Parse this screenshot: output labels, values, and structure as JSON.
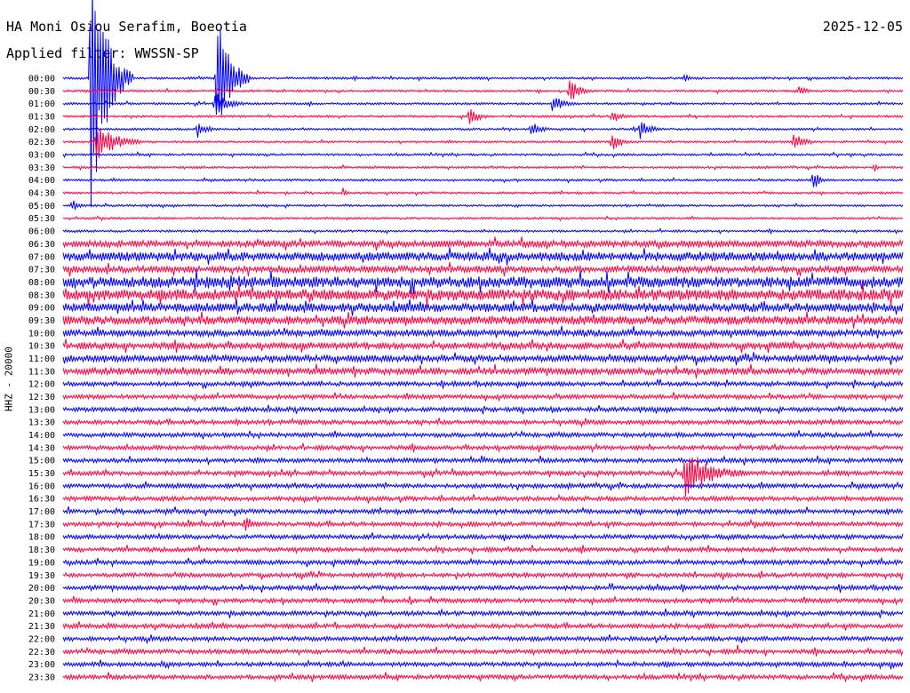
{
  "header": {
    "station": "HA Moni Osiou Serafim, Boeotia",
    "date": "2025-12-05",
    "filter": "Applied filter: WWSSN-SP"
  },
  "chart_data": {
    "type": "line",
    "title": "HA Moni Osiou Serafim, Boeotia",
    "ylabel": "HHZ - 20000",
    "colors": [
      "#0000ff",
      "#ff0040"
    ],
    "rows": [
      "00:00",
      "00:30",
      "01:00",
      "01:30",
      "02:00",
      "02:30",
      "03:00",
      "03:30",
      "04:00",
      "04:30",
      "05:00",
      "05:30",
      "06:00",
      "06:30",
      "07:00",
      "07:30",
      "08:00",
      "08:30",
      "09:00",
      "09:30",
      "10:00",
      "10:30",
      "11:00",
      "11:30",
      "12:00",
      "12:30",
      "13:00",
      "13:30",
      "14:00",
      "14:30",
      "15:00",
      "15:30",
      "16:00",
      "16:30",
      "17:00",
      "17:30",
      "18:00",
      "18:30",
      "19:00",
      "19:30",
      "20:00",
      "20:30",
      "21:00",
      "21:30",
      "22:00",
      "22:30",
      "23:00",
      "23:30"
    ],
    "noise_level": [
      1,
      1,
      1,
      1,
      1,
      1,
      1,
      1,
      1,
      1,
      1,
      1,
      1,
      3,
      4,
      3,
      5,
      5,
      4,
      4,
      3,
      3,
      3,
      3,
      2,
      2,
      2,
      2,
      2,
      2,
      2,
      2,
      2,
      2,
      2,
      2,
      2,
      2,
      2,
      2,
      2,
      2,
      2,
      2,
      2,
      2,
      2,
      2
    ],
    "events": [
      {
        "row": "00:00",
        "minute": 1,
        "amplitude": 160,
        "duration": 1.5
      },
      {
        "row": "00:00",
        "minute": 5.5,
        "amplitude": 85,
        "duration": 1.2
      },
      {
        "row": "02:30",
        "minute": 1.2,
        "amplitude": 22,
        "duration": 2
      },
      {
        "row": "01:00",
        "minute": 5.4,
        "amplitude": 14,
        "duration": 1.5
      },
      {
        "row": "02:00",
        "minute": 4.8,
        "amplitude": 10,
        "duration": 1
      },
      {
        "row": "04:30",
        "minute": 10,
        "amplitude": 6,
        "duration": 0.5
      },
      {
        "row": "00:30",
        "minute": 18.1,
        "amplitude": 16,
        "duration": 1
      },
      {
        "row": "01:00",
        "minute": 17.5,
        "amplitude": 12,
        "duration": 1
      },
      {
        "row": "01:30",
        "minute": 19.6,
        "amplitude": 8,
        "duration": 1
      },
      {
        "row": "02:00",
        "minute": 16.7,
        "amplitude": 10,
        "duration": 1
      },
      {
        "row": "02:00",
        "minute": 20.6,
        "amplitude": 14,
        "duration": 1
      },
      {
        "row": "02:30",
        "minute": 26.1,
        "amplitude": 12,
        "duration": 1
      },
      {
        "row": "00:00",
        "minute": 22.2,
        "amplitude": 6,
        "duration": 0.5
      },
      {
        "row": "01:30",
        "minute": 14.5,
        "amplitude": 12,
        "duration": 1
      },
      {
        "row": "02:30",
        "minute": 19.6,
        "amplitude": 10,
        "duration": 1
      },
      {
        "row": "00:30",
        "minute": 26.3,
        "amplitude": 6,
        "duration": 0.8
      },
      {
        "row": "04:00",
        "minute": 26.8,
        "amplitude": 12,
        "duration": 0.7
      },
      {
        "row": "03:30",
        "minute": 29,
        "amplitude": 8,
        "duration": 0.2
      },
      {
        "row": "15:30",
        "minute": 22.2,
        "amplitude": 32,
        "duration": 2.5
      },
      {
        "row": "17:30",
        "minute": 6.5,
        "amplitude": 10,
        "duration": 1
      },
      {
        "row": "05:00",
        "minute": 0.3,
        "amplitude": 8,
        "duration": 0.8
      },
      {
        "row": "13:30",
        "minute": 6.2,
        "amplitude": 4,
        "duration": 0.6
      },
      {
        "row": "20:00",
        "minute": 22.1,
        "amplitude": 6,
        "duration": 0.6
      },
      {
        "row": "17:00",
        "minute": 25.5,
        "amplitude": 5,
        "duration": 0.2
      },
      {
        "row": "16:30",
        "minute": 0.4,
        "amplitude": 4,
        "duration": 0.4
      },
      {
        "row": "22:30",
        "minute": 24.1,
        "amplitude": 8,
        "duration": 0.2
      },
      {
        "row": "23:00",
        "minute": 3.5,
        "amplitude": 4,
        "duration": 0.5
      },
      {
        "row": "14:30",
        "minute": 17.5,
        "amplitude": 3,
        "duration": 1
      }
    ]
  }
}
